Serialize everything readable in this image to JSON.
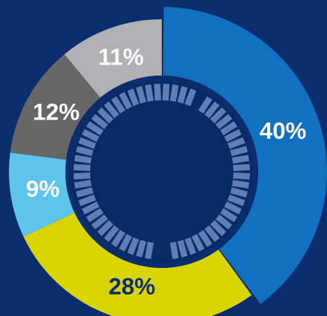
{
  "chart_data": {
    "type": "pie",
    "values": [
      40,
      28,
      9,
      12,
      11
    ],
    "value_labels": [
      "40%",
      "28%",
      "9%",
      "12%",
      "11%"
    ],
    "colors": [
      "#1170c0",
      "#d8d400",
      "#5ec4ec",
      "#666666",
      "#b1b1b5"
    ],
    "label_colors": [
      "#ffffff",
      "#0a2d6e",
      "#ffffff",
      "#ffffff",
      "#ffffff"
    ]
  }
}
